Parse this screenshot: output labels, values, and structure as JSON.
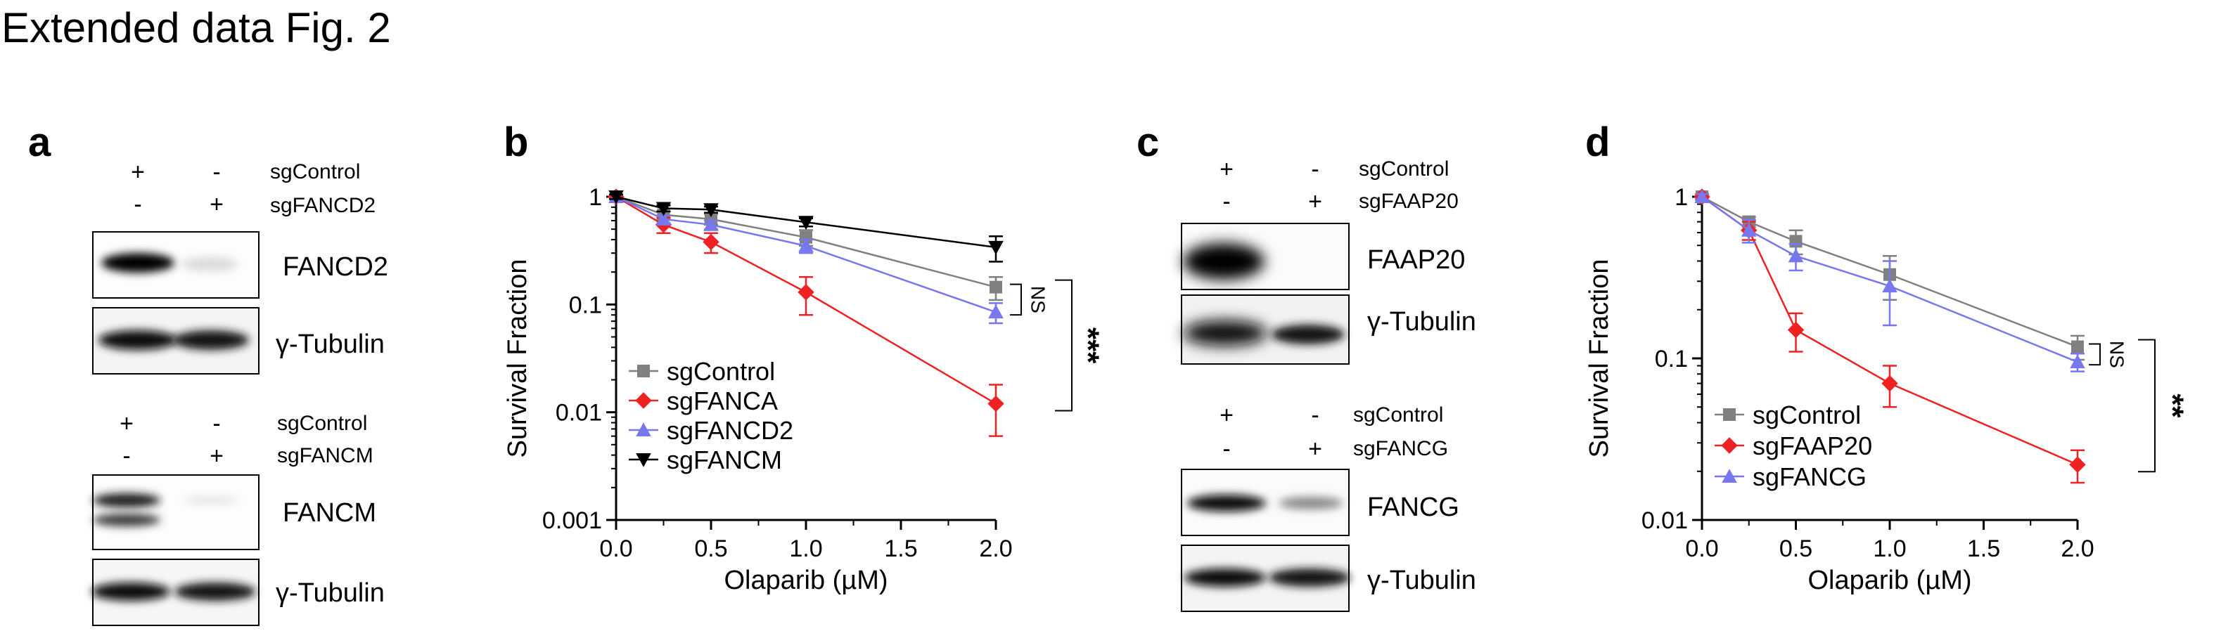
{
  "figure_title": "Extended data Fig. 2",
  "panels": {
    "a": {
      "letter": "a",
      "blot1": {
        "col1": {
          "row1": "+",
          "row2": "-"
        },
        "col2": {
          "row1": "-",
          "row2": "+"
        },
        "row1_label": "sgControl",
        "row2_label": "sgFANCD2",
        "band_labels": [
          "FANCD2",
          "γ-Tubulin"
        ],
        "target_band_intensity": [
          1.0,
          0.12
        ],
        "loading_band_intensity": [
          1.0,
          0.95
        ]
      },
      "blot2": {
        "col1": {
          "row1": "+",
          "row2": "-"
        },
        "col2": {
          "row1": "-",
          "row2": "+"
        },
        "row1_label": "sgControl",
        "row2_label": "sgFANCM",
        "band_labels": [
          "FANCM",
          "γ-Tubulin"
        ],
        "target_band_intensity": [
          1.0,
          0.08
        ],
        "loading_band_intensity": [
          1.0,
          0.95
        ]
      }
    },
    "c": {
      "letter": "c",
      "blot1": {
        "col1": {
          "row1": "+",
          "row2": "-"
        },
        "col2": {
          "row1": "-",
          "row2": "+"
        },
        "row1_label": "sgControl",
        "row2_label": "sgFAAP20",
        "band_labels": [
          "FAAP20",
          "γ-Tubulin"
        ],
        "target_band_intensity": [
          1.0,
          0.0
        ],
        "loading_band_intensity": [
          1.0,
          0.95
        ]
      },
      "blot2": {
        "col1": {
          "row1": "+",
          "row2": "-"
        },
        "col2": {
          "row1": "-",
          "row2": "+"
        },
        "row1_label": "sgControl",
        "row2_label": "sgFANCG",
        "band_labels": [
          "FANCG",
          "γ-Tubulin"
        ],
        "target_band_intensity": [
          1.0,
          0.45
        ],
        "loading_band_intensity": [
          1.0,
          0.95
        ]
      }
    }
  },
  "chart_data": [
    {
      "panel": "b",
      "type": "line",
      "yscale": "log",
      "xlabel": "Olaparib (µM)",
      "ylabel": "Survival Fraction",
      "xlim": [
        0,
        2
      ],
      "ylim": [
        0.001,
        1
      ],
      "xticks": [
        0.0,
        0.5,
        1.0,
        1.5,
        2.0
      ],
      "xtick_labels": [
        "0.0",
        "0.5",
        "1.0",
        "1.5",
        "2.0"
      ],
      "yticks": [
        1,
        0.1,
        0.01,
        0.001
      ],
      "ytick_labels": [
        "1",
        "0.1",
        "0.01",
        "0.001"
      ],
      "x": [
        0,
        0.25,
        0.5,
        1.0,
        2.0
      ],
      "series": [
        {
          "name": "sgControl",
          "color": "#808080",
          "marker": "square",
          "values": [
            1,
            0.68,
            0.62,
            0.42,
            0.145
          ],
          "err": [
            0.05,
            0.06,
            0.07,
            0.07,
            0.035
          ]
        },
        {
          "name": "sgFANCA",
          "color": "#ee2222",
          "marker": "diamond",
          "values": [
            1,
            0.55,
            0.38,
            0.13,
            0.012
          ],
          "err": [
            0.05,
            0.09,
            0.08,
            0.05,
            0.006
          ]
        },
        {
          "name": "sgFANCD2",
          "color": "#7777ee",
          "marker": "triangle-up",
          "values": [
            1,
            0.62,
            0.55,
            0.35,
            0.085
          ],
          "err": [
            0.05,
            0.05,
            0.05,
            0.05,
            0.018
          ]
        },
        {
          "name": "sgFANCM",
          "color": "#000000",
          "marker": "triangle-down",
          "values": [
            1,
            0.78,
            0.76,
            0.58,
            0.34
          ],
          "err": [
            0.05,
            0.05,
            0.05,
            0.05,
            0.09
          ]
        }
      ],
      "annotations": [
        {
          "text": "NS",
          "between": [
            "sgControl",
            "sgFANCD2"
          ]
        },
        {
          "text": "***",
          "between": [
            "sgControl",
            "sgFANCA"
          ]
        }
      ],
      "legend": "bottom-left"
    },
    {
      "panel": "d",
      "type": "line",
      "yscale": "log",
      "xlabel": "Olaparib (µM)",
      "ylabel": "Survival Fraction",
      "xlim": [
        0,
        2
      ],
      "ylim": [
        0.01,
        1
      ],
      "xticks": [
        0.0,
        0.5,
        1.0,
        1.5,
        2.0
      ],
      "xtick_labels": [
        "0.0",
        "0.5",
        "1.0",
        "1.5",
        "2.0"
      ],
      "yticks": [
        1,
        0.1,
        0.01
      ],
      "ytick_labels": [
        "1",
        "0.1",
        "0.01"
      ],
      "x": [
        0,
        0.25,
        0.5,
        1.0,
        2.0
      ],
      "series": [
        {
          "name": "sgControl",
          "color": "#808080",
          "marker": "square",
          "values": [
            1,
            0.7,
            0.53,
            0.33,
            0.118
          ],
          "err": [
            0.04,
            0.05,
            0.09,
            0.1,
            0.02
          ]
        },
        {
          "name": "sgFAAP20",
          "color": "#ee2222",
          "marker": "diamond",
          "values": [
            1,
            0.62,
            0.15,
            0.07,
            0.022
          ],
          "err": [
            0.04,
            0.08,
            0.04,
            0.02,
            0.005
          ]
        },
        {
          "name": "sgFANCG",
          "color": "#7777ee",
          "marker": "triangle-up",
          "values": [
            1,
            0.62,
            0.43,
            0.28,
            0.095
          ],
          "err": [
            0.04,
            0.1,
            0.08,
            0.12,
            0.012
          ]
        }
      ],
      "annotations": [
        {
          "text": "NS",
          "between": [
            "sgControl",
            "sgFANCG"
          ]
        },
        {
          "text": "**",
          "between": [
            "sgControl",
            "sgFAAP20"
          ]
        }
      ],
      "legend": "bottom-left"
    }
  ]
}
